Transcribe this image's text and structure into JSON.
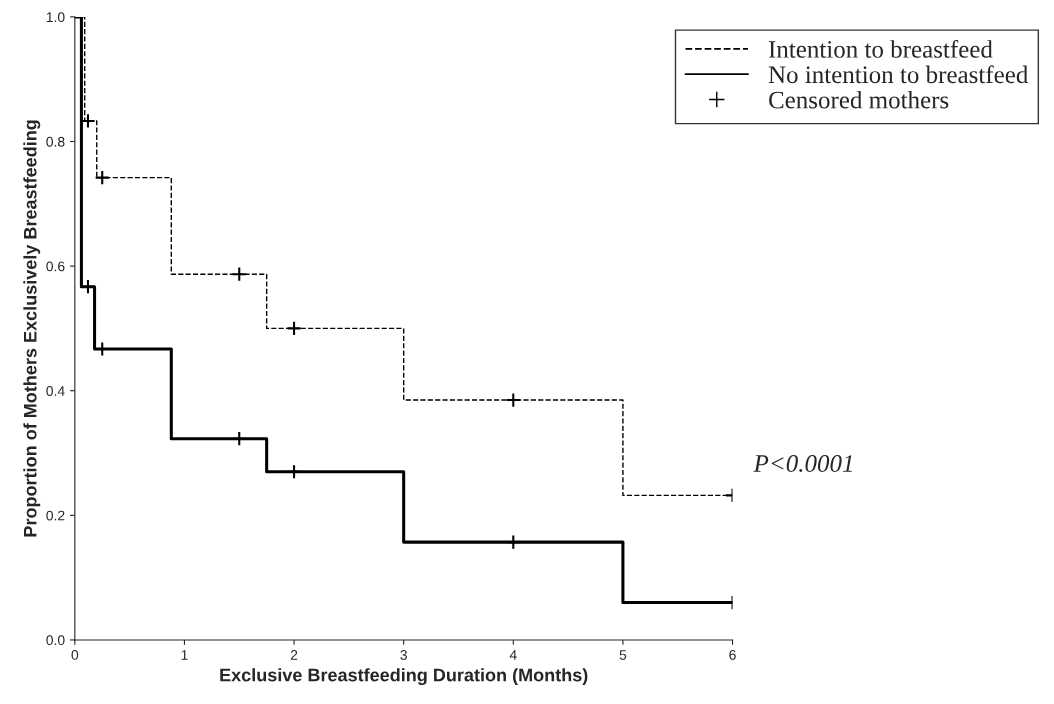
{
  "chart_data": {
    "type": "step",
    "xlabel": "Exclusive Breastfeeding Duration (Months)",
    "ylabel": "Proportion of Mothers Exclusively Breastfeeding",
    "xlim": [
      0,
      6
    ],
    "xticks": [
      0,
      1,
      2,
      3,
      4,
      5,
      6
    ],
    "ylim": [
      0,
      1
    ],
    "yticks": [
      {
        "value": 0,
        "label": "0.0"
      },
      {
        "value": 0.2,
        "label": "0.2"
      },
      {
        "value": 0.4,
        "label": "0.4"
      },
      {
        "value": 0.6,
        "label": "0.6"
      },
      {
        "value": 0.8,
        "label": "0.8"
      },
      {
        "value": 1,
        "label": "1.0"
      }
    ],
    "grid": false,
    "legend": "top right",
    "series": [
      {
        "name": "Intention to breastfeed",
        "color": "#000000",
        "line_style": "dashed",
        "marker": "none",
        "x": [
          0,
          0.09,
          0.2,
          0.88,
          1.75,
          3,
          5,
          6
        ],
        "values": [
          1,
          0.833,
          0.742,
          0.587,
          0.5,
          0.385,
          0.232,
          0.232
        ]
      },
      {
        "name": "No intention to breastfeed",
        "color": "#000000",
        "line_style": "solid",
        "marker": "none",
        "x": [
          0,
          0.06,
          0.18,
          0.88,
          1.75,
          3,
          5,
          6
        ],
        "values": [
          1,
          0.567,
          0.467,
          0.323,
          0.27,
          0.157,
          0.06,
          0.06
        ]
      },
      {
        "name": "Censored mothers",
        "type": "scatter",
        "color": "#000000",
        "marker": "cross",
        "x": [
          0.12,
          0.25,
          1.5,
          2,
          4,
          6,
          0.12,
          0.25,
          1.5,
          2,
          4,
          6
        ],
        "values": [
          0.833,
          0.742,
          0.587,
          0.5,
          0.385,
          0.232,
          0.567,
          0.467,
          0.323,
          0.27,
          0.157,
          0.06
        ]
      }
    ],
    "annotations": [
      "P<0.0001"
    ]
  }
}
